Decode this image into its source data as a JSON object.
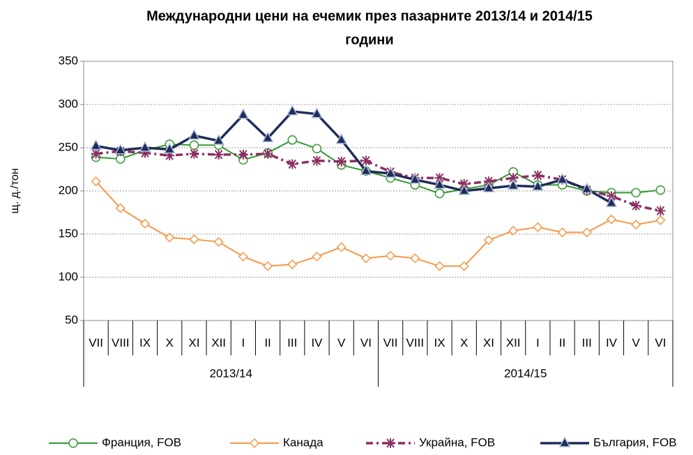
{
  "chart_data": {
    "type": "line",
    "title": [
      "Международни цени на ечемик през пазарните 2013/14  и  2014/15",
      "години"
    ],
    "y_label": "щ. д./тон",
    "categories": [
      "VII",
      "VIII",
      "IX",
      "X",
      "XI",
      "XII",
      "I",
      "II",
      "III",
      "IV",
      "V",
      "VI",
      "VII",
      "VIII",
      "IX",
      "X",
      "XI",
      "XII",
      "I",
      "II",
      "III",
      "IV",
      "V",
      "VI"
    ],
    "groups": [
      "2013/14",
      "2014/15"
    ],
    "ylim": [
      50,
      350
    ],
    "yticks": [
      50,
      100,
      150,
      200,
      250,
      300,
      350
    ],
    "grid": true,
    "legend": "bottom",
    "series": [
      {
        "name": "Франция, FOB",
        "color": "#339933",
        "marker": "circle",
        "values": [
          239,
          237,
          247,
          254,
          253,
          253,
          236,
          244,
          259,
          249,
          230,
          223,
          215,
          207,
          197,
          202,
          207,
          222,
          207,
          207,
          200,
          198,
          198,
          201
        ]
      },
      {
        "name": "Канада",
        "color": "#f79646",
        "marker": "diamond",
        "values": [
          211,
          180,
          162,
          146,
          144,
          141,
          124,
          113,
          115,
          124,
          135,
          122,
          125,
          122,
          113,
          113,
          143,
          154,
          158,
          152,
          152,
          167,
          161,
          166
        ]
      },
      {
        "name": "Украйна, FOB",
        "color": "#8b2f62",
        "marker": "asterisk",
        "dashed": true,
        "values": [
          243,
          246,
          244,
          241,
          243,
          242,
          242,
          243,
          231,
          235,
          234,
          235,
          222,
          215,
          215,
          208,
          211,
          215,
          218,
          213,
          201,
          194,
          183,
          177
        ]
      },
      {
        "name": "България, FOB",
        "color": "#1f2d5a",
        "marker": "triangle",
        "values": [
          252,
          247,
          250,
          248,
          264,
          258,
          288,
          261,
          292,
          289,
          259,
          223,
          220,
          213,
          207,
          200,
          203,
          206,
          205,
          213,
          202,
          186,
          null,
          null
        ]
      }
    ]
  }
}
